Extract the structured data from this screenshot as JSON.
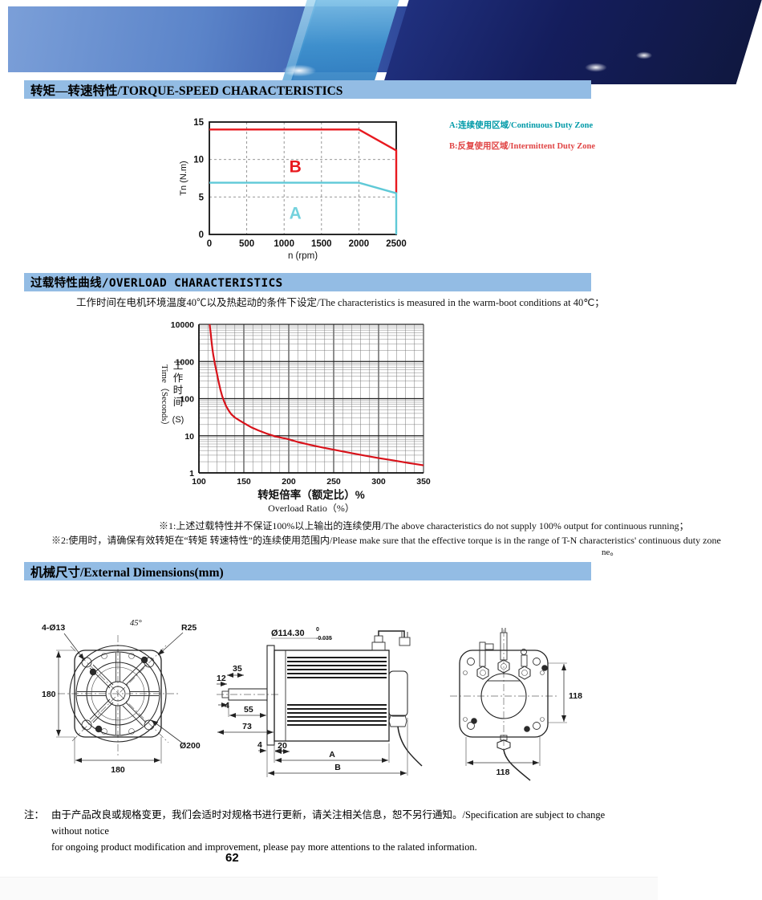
{
  "sections": {
    "torque": {
      "title": "转矩—转速特性/TORQUE-SPEED CHARACTERISTICS",
      "band_color": "#93bce4",
      "legend": [
        {
          "text": "A:连续使用区域/Continuous Duty Zone",
          "color": "#009aa8"
        },
        {
          "text": "B:反复使用区域/Intermittent Duty Zone",
          "color": "#e04545"
        }
      ]
    },
    "overload": {
      "title": "过载特性曲线/OVERLOAD CHARACTERISTICS",
      "subtitle": "工作时间在电机环境温度40℃以及热起动的条件下设定/The characteristics is measured in the warm-boot conditions at 40℃；",
      "note1": "※1:上述过载特性并不保证100%以上输出的连续使用/The above characteristics do not supply 100% output for continuous running；",
      "note2": "※2:使用时，请确保有效转矩在“转矩 转速特性”的连续使用范围内/Please make sure that the effective torque is in the range of T-N characteristics' continuous duty zone",
      "note2_tail": "ne。",
      "stray_mark": "-"
    },
    "dimensions": {
      "title": "机械尺寸/External Dimensions(mm)"
    }
  },
  "drawings": {
    "front_view": {
      "labels": {
        "bolt_holes": "4-Ø13",
        "chamfer_angle": "45°",
        "corner_radius": "R25",
        "flange_height": "180",
        "flange_width": "180",
        "outer_diameter": "Ø200"
      }
    },
    "side_view": {
      "labels": {
        "spigot_diameter": "Ø114.30",
        "tol_upper": "0",
        "tol_lower": "-0.035",
        "dim_35": "35",
        "dim_12": "12",
        "dim_4_shaft": "4",
        "dim_55": "55",
        "dim_73": "73",
        "dim_4_flange": "4",
        "dim_20": "20",
        "dim_a": "A",
        "dim_b": "B"
      }
    },
    "rear_view": {
      "labels": {
        "pitch_height": "118",
        "pitch_width": "118"
      }
    }
  },
  "footer": {
    "note_label": "注：",
    "note_line1": "由于产品改良或规格变更，我们会适时对规格书进行更新，请关注相关信息，恕不另行通知。/Specification are subject to change without notice",
    "note_line2": "for ongoing product modification and improvement, please pay more attentions to the ralated information.",
    "page_number": "62"
  },
  "chart_data": [
    {
      "type": "line",
      "title": "Torque-Speed Characteristics",
      "xlabel": "n (rpm)",
      "ylabel": "Tn (N.m)",
      "xlim": [
        0,
        2500
      ],
      "ylim": [
        0,
        15
      ],
      "xticks": [
        0,
        500,
        1000,
        1500,
        2000,
        2500
      ],
      "yticks": [
        0,
        5,
        10,
        15
      ],
      "grid": "dashed",
      "legend_position": "right-outside",
      "series": [
        {
          "name": "B 反复使用区域/Intermittent Duty Zone",
          "color": "#e8191f",
          "points": [
            [
              0,
              14
            ],
            [
              2000,
              14
            ],
            [
              2500,
              11.2
            ],
            [
              2500,
              5.5
            ]
          ]
        },
        {
          "name": "A 连续使用区域/Continuous Duty Zone",
          "color": "#5fc9d7",
          "points": [
            [
              0,
              6.9
            ],
            [
              2000,
              6.9
            ],
            [
              2500,
              5.5
            ],
            [
              2500,
              0
            ]
          ]
        }
      ],
      "zone_labels": [
        {
          "text": "B",
          "x": 1150,
          "y": 8.3,
          "color": "#e8191f"
        },
        {
          "text": "A",
          "x": 1150,
          "y": 2.1,
          "color": "#74d2dd"
        }
      ]
    },
    {
      "type": "line",
      "title": "Overload Characteristics",
      "xlabel_cn": "转矩倍率（额定比）%",
      "xlabel_en": "Overload Ratio（%）",
      "ylabel_en": "Time（Seconds）",
      "ylabel_cn": "工作时间",
      "ylabel_unit": "(S)",
      "xlim": [
        100,
        350
      ],
      "ylim_log": [
        1,
        10000
      ],
      "xticks": [
        100,
        150,
        200,
        250,
        300,
        350
      ],
      "yticks": [
        1,
        10,
        100,
        1000,
        10000
      ],
      "x_minor_step": 10,
      "grid": "full-log",
      "curve_color": "#d8121a",
      "curve": [
        [
          112,
          10000
        ],
        [
          113,
          6000
        ],
        [
          114,
          3500
        ],
        [
          115,
          2200
        ],
        [
          116,
          1500
        ],
        [
          118,
          800
        ],
        [
          120,
          480
        ],
        [
          122,
          280
        ],
        [
          124,
          170
        ],
        [
          126,
          115
        ],
        [
          128,
          85
        ],
        [
          130,
          65
        ],
        [
          133,
          48
        ],
        [
          136,
          38
        ],
        [
          140,
          31
        ],
        [
          145,
          26
        ],
        [
          150,
          22
        ],
        [
          158,
          17
        ],
        [
          166,
          14
        ],
        [
          175,
          11.5
        ],
        [
          185,
          9.6
        ],
        [
          200,
          8
        ],
        [
          210,
          6.8
        ],
        [
          225,
          5.6
        ],
        [
          240,
          4.7
        ],
        [
          255,
          4.0
        ],
        [
          270,
          3.4
        ],
        [
          285,
          2.9
        ],
        [
          300,
          2.5
        ],
        [
          315,
          2.2
        ],
        [
          330,
          1.9
        ],
        [
          340,
          1.75
        ],
        [
          350,
          1.6
        ]
      ]
    }
  ]
}
